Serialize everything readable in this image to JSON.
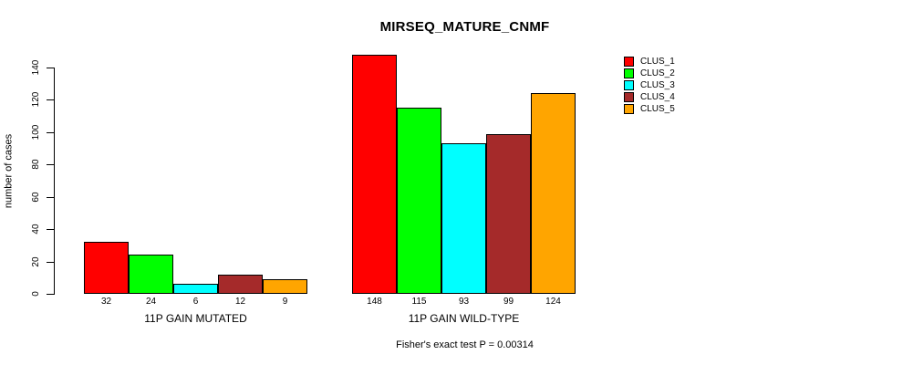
{
  "title": "MIRSEQ_MATURE_CNMF",
  "footer": "Fisher's exact test P = 0.00314",
  "y_axis_label": "number of cases",
  "legend": [
    {
      "label": "CLUS_1",
      "color": "#FF0000"
    },
    {
      "label": "CLUS_2",
      "color": "#00FF00"
    },
    {
      "label": "CLUS_3",
      "color": "#00FFFF"
    },
    {
      "label": "CLUS_4",
      "color": "#A52A2A"
    },
    {
      "label": "CLUS_5",
      "color": "#FFA500"
    }
  ],
  "chart_data": {
    "type": "bar",
    "title": "MIRSEQ_MATURE_CNMF",
    "ylabel": "number of cases",
    "ylim": [
      0,
      140
    ],
    "yticks": [
      0,
      20,
      40,
      60,
      80,
      100,
      120,
      140
    ],
    "grid": false,
    "legend_position": "top-right",
    "series_names": [
      "CLUS_1",
      "CLUS_2",
      "CLUS_3",
      "CLUS_4",
      "CLUS_5"
    ],
    "series_colors": [
      "#FF0000",
      "#00FF00",
      "#00FFFF",
      "#A52A2A",
      "#FFA500"
    ],
    "bar_border_color": "#000000",
    "bar_value_labels": true,
    "groups": [
      {
        "label": "11P GAIN MUTATED",
        "values": [
          32,
          24,
          6,
          12,
          9
        ]
      },
      {
        "label": "11P GAIN WILD-TYPE",
        "values": [
          148,
          115,
          93,
          99,
          124
        ]
      }
    ],
    "annotation": "Fisher's exact test P = 0.00314"
  }
}
